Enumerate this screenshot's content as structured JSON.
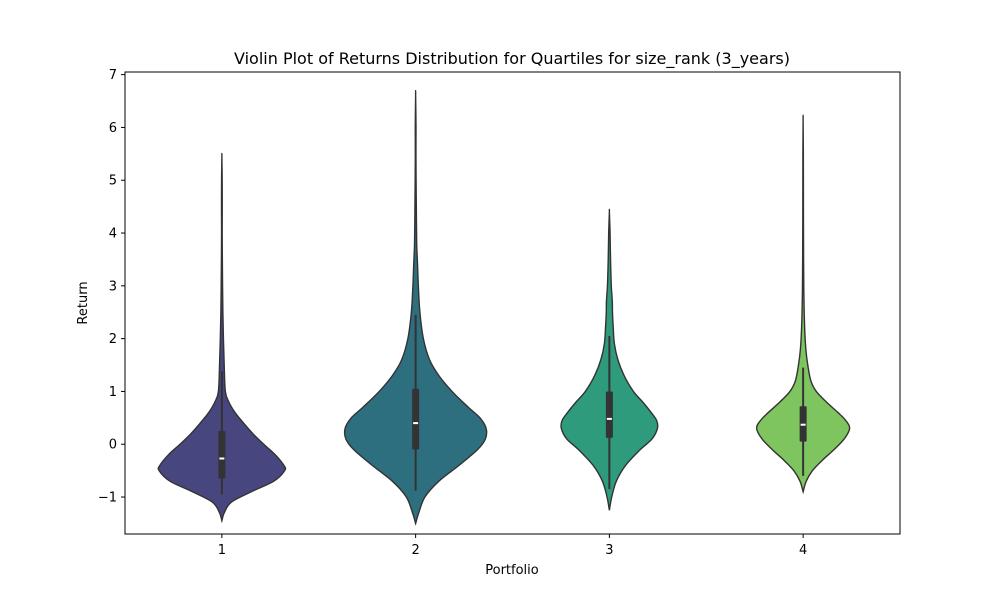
{
  "chart_data": {
    "type": "violin",
    "title": "Violin Plot of Returns Distribution for Quartiles for size_rank (3_years)",
    "xlabel": "Portfolio",
    "ylabel": "Return",
    "categories": [
      "1",
      "2",
      "3",
      "4"
    ],
    "ylim": [
      -1.7,
      7.05
    ],
    "yticks": [
      -1,
      0,
      1,
      2,
      3,
      4,
      5,
      6,
      7
    ],
    "ytick_labels": [
      "−1",
      "0",
      "1",
      "2",
      "3",
      "4",
      "5",
      "6",
      "7"
    ],
    "grid": false,
    "legend": "none",
    "violins": [
      {
        "category": "1",
        "color": "#47467e",
        "min": -1.45,
        "max": 5.45,
        "median": -0.27,
        "q1": -0.65,
        "q3": 0.25,
        "whisker_low": -0.95,
        "whisker_high": 1.38,
        "density": [
          [
            -1.45,
            0.0
          ],
          [
            -1.3,
            0.03
          ],
          [
            -1.1,
            0.12
          ],
          [
            -0.9,
            0.38
          ],
          [
            -0.7,
            0.67
          ],
          [
            -0.5,
            0.81
          ],
          [
            -0.4,
            0.8
          ],
          [
            -0.2,
            0.69
          ],
          [
            0.0,
            0.54
          ],
          [
            0.2,
            0.4
          ],
          [
            0.4,
            0.28
          ],
          [
            0.6,
            0.17
          ],
          [
            0.8,
            0.09
          ],
          [
            1.0,
            0.045
          ],
          [
            1.5,
            0.03
          ],
          [
            2.0,
            0.02
          ],
          [
            2.5,
            0.013
          ],
          [
            3.0,
            0.009
          ],
          [
            3.5,
            0.006
          ],
          [
            4.0,
            0.004
          ],
          [
            4.5,
            0.005
          ],
          [
            5.0,
            0.004
          ],
          [
            5.45,
            0.0
          ]
        ]
      },
      {
        "category": "2",
        "color": "#2d6f7f",
        "min": -1.5,
        "max": 6.62,
        "median": 0.4,
        "q1": -0.1,
        "q3": 1.05,
        "whisker_low": -0.88,
        "whisker_high": 2.45,
        "density": [
          [
            -1.5,
            0.0
          ],
          [
            -1.3,
            0.04
          ],
          [
            -1.0,
            0.12
          ],
          [
            -0.7,
            0.3
          ],
          [
            -0.4,
            0.56
          ],
          [
            -0.1,
            0.8
          ],
          [
            0.1,
            0.9
          ],
          [
            0.3,
            0.91
          ],
          [
            0.5,
            0.83
          ],
          [
            0.7,
            0.68
          ],
          [
            1.0,
            0.47
          ],
          [
            1.3,
            0.3
          ],
          [
            1.6,
            0.18
          ],
          [
            2.0,
            0.1
          ],
          [
            2.5,
            0.055
          ],
          [
            3.0,
            0.035
          ],
          [
            3.4,
            0.025
          ],
          [
            3.8,
            0.014
          ],
          [
            4.5,
            0.009
          ],
          [
            5.0,
            0.006
          ],
          [
            5.5,
            0.004
          ],
          [
            6.0,
            0.005
          ],
          [
            6.62,
            0.0
          ]
        ]
      },
      {
        "category": "3",
        "color": "#2e9b7d",
        "min": -1.25,
        "max": 4.4,
        "median": 0.48,
        "q1": 0.12,
        "q3": 1.0,
        "whisker_low": -0.85,
        "whisker_high": 2.05,
        "density": [
          [
            -1.25,
            0.0
          ],
          [
            -1.0,
            0.03
          ],
          [
            -0.7,
            0.09
          ],
          [
            -0.4,
            0.21
          ],
          [
            -0.1,
            0.4
          ],
          [
            0.1,
            0.55
          ],
          [
            0.3,
            0.62
          ],
          [
            0.45,
            0.61
          ],
          [
            0.6,
            0.54
          ],
          [
            0.8,
            0.43
          ],
          [
            1.0,
            0.31
          ],
          [
            1.3,
            0.19
          ],
          [
            1.6,
            0.11
          ],
          [
            1.9,
            0.065
          ],
          [
            2.2,
            0.05
          ],
          [
            2.5,
            0.04
          ],
          [
            2.7,
            0.038
          ],
          [
            3.0,
            0.025
          ],
          [
            3.5,
            0.015
          ],
          [
            4.0,
            0.009
          ],
          [
            4.4,
            0.0
          ]
        ]
      },
      {
        "category": "4",
        "color": "#7fc55f",
        "min": -0.9,
        "max": 6.15,
        "median": 0.37,
        "q1": 0.05,
        "q3": 0.72,
        "whisker_low": -0.6,
        "whisker_high": 1.45,
        "density": [
          [
            -0.9,
            0.0
          ],
          [
            -0.7,
            0.04
          ],
          [
            -0.5,
            0.12
          ],
          [
            -0.3,
            0.25
          ],
          [
            -0.1,
            0.4
          ],
          [
            0.1,
            0.53
          ],
          [
            0.3,
            0.6
          ],
          [
            0.45,
            0.55
          ],
          [
            0.6,
            0.45
          ],
          [
            0.8,
            0.3
          ],
          [
            1.0,
            0.17
          ],
          [
            1.2,
            0.1
          ],
          [
            1.5,
            0.06
          ],
          [
            1.8,
            0.035
          ],
          [
            2.2,
            0.02
          ],
          [
            2.8,
            0.01
          ],
          [
            3.5,
            0.006
          ],
          [
            4.5,
            0.004
          ],
          [
            5.5,
            0.003
          ],
          [
            6.15,
            0.0
          ]
        ]
      }
    ]
  }
}
